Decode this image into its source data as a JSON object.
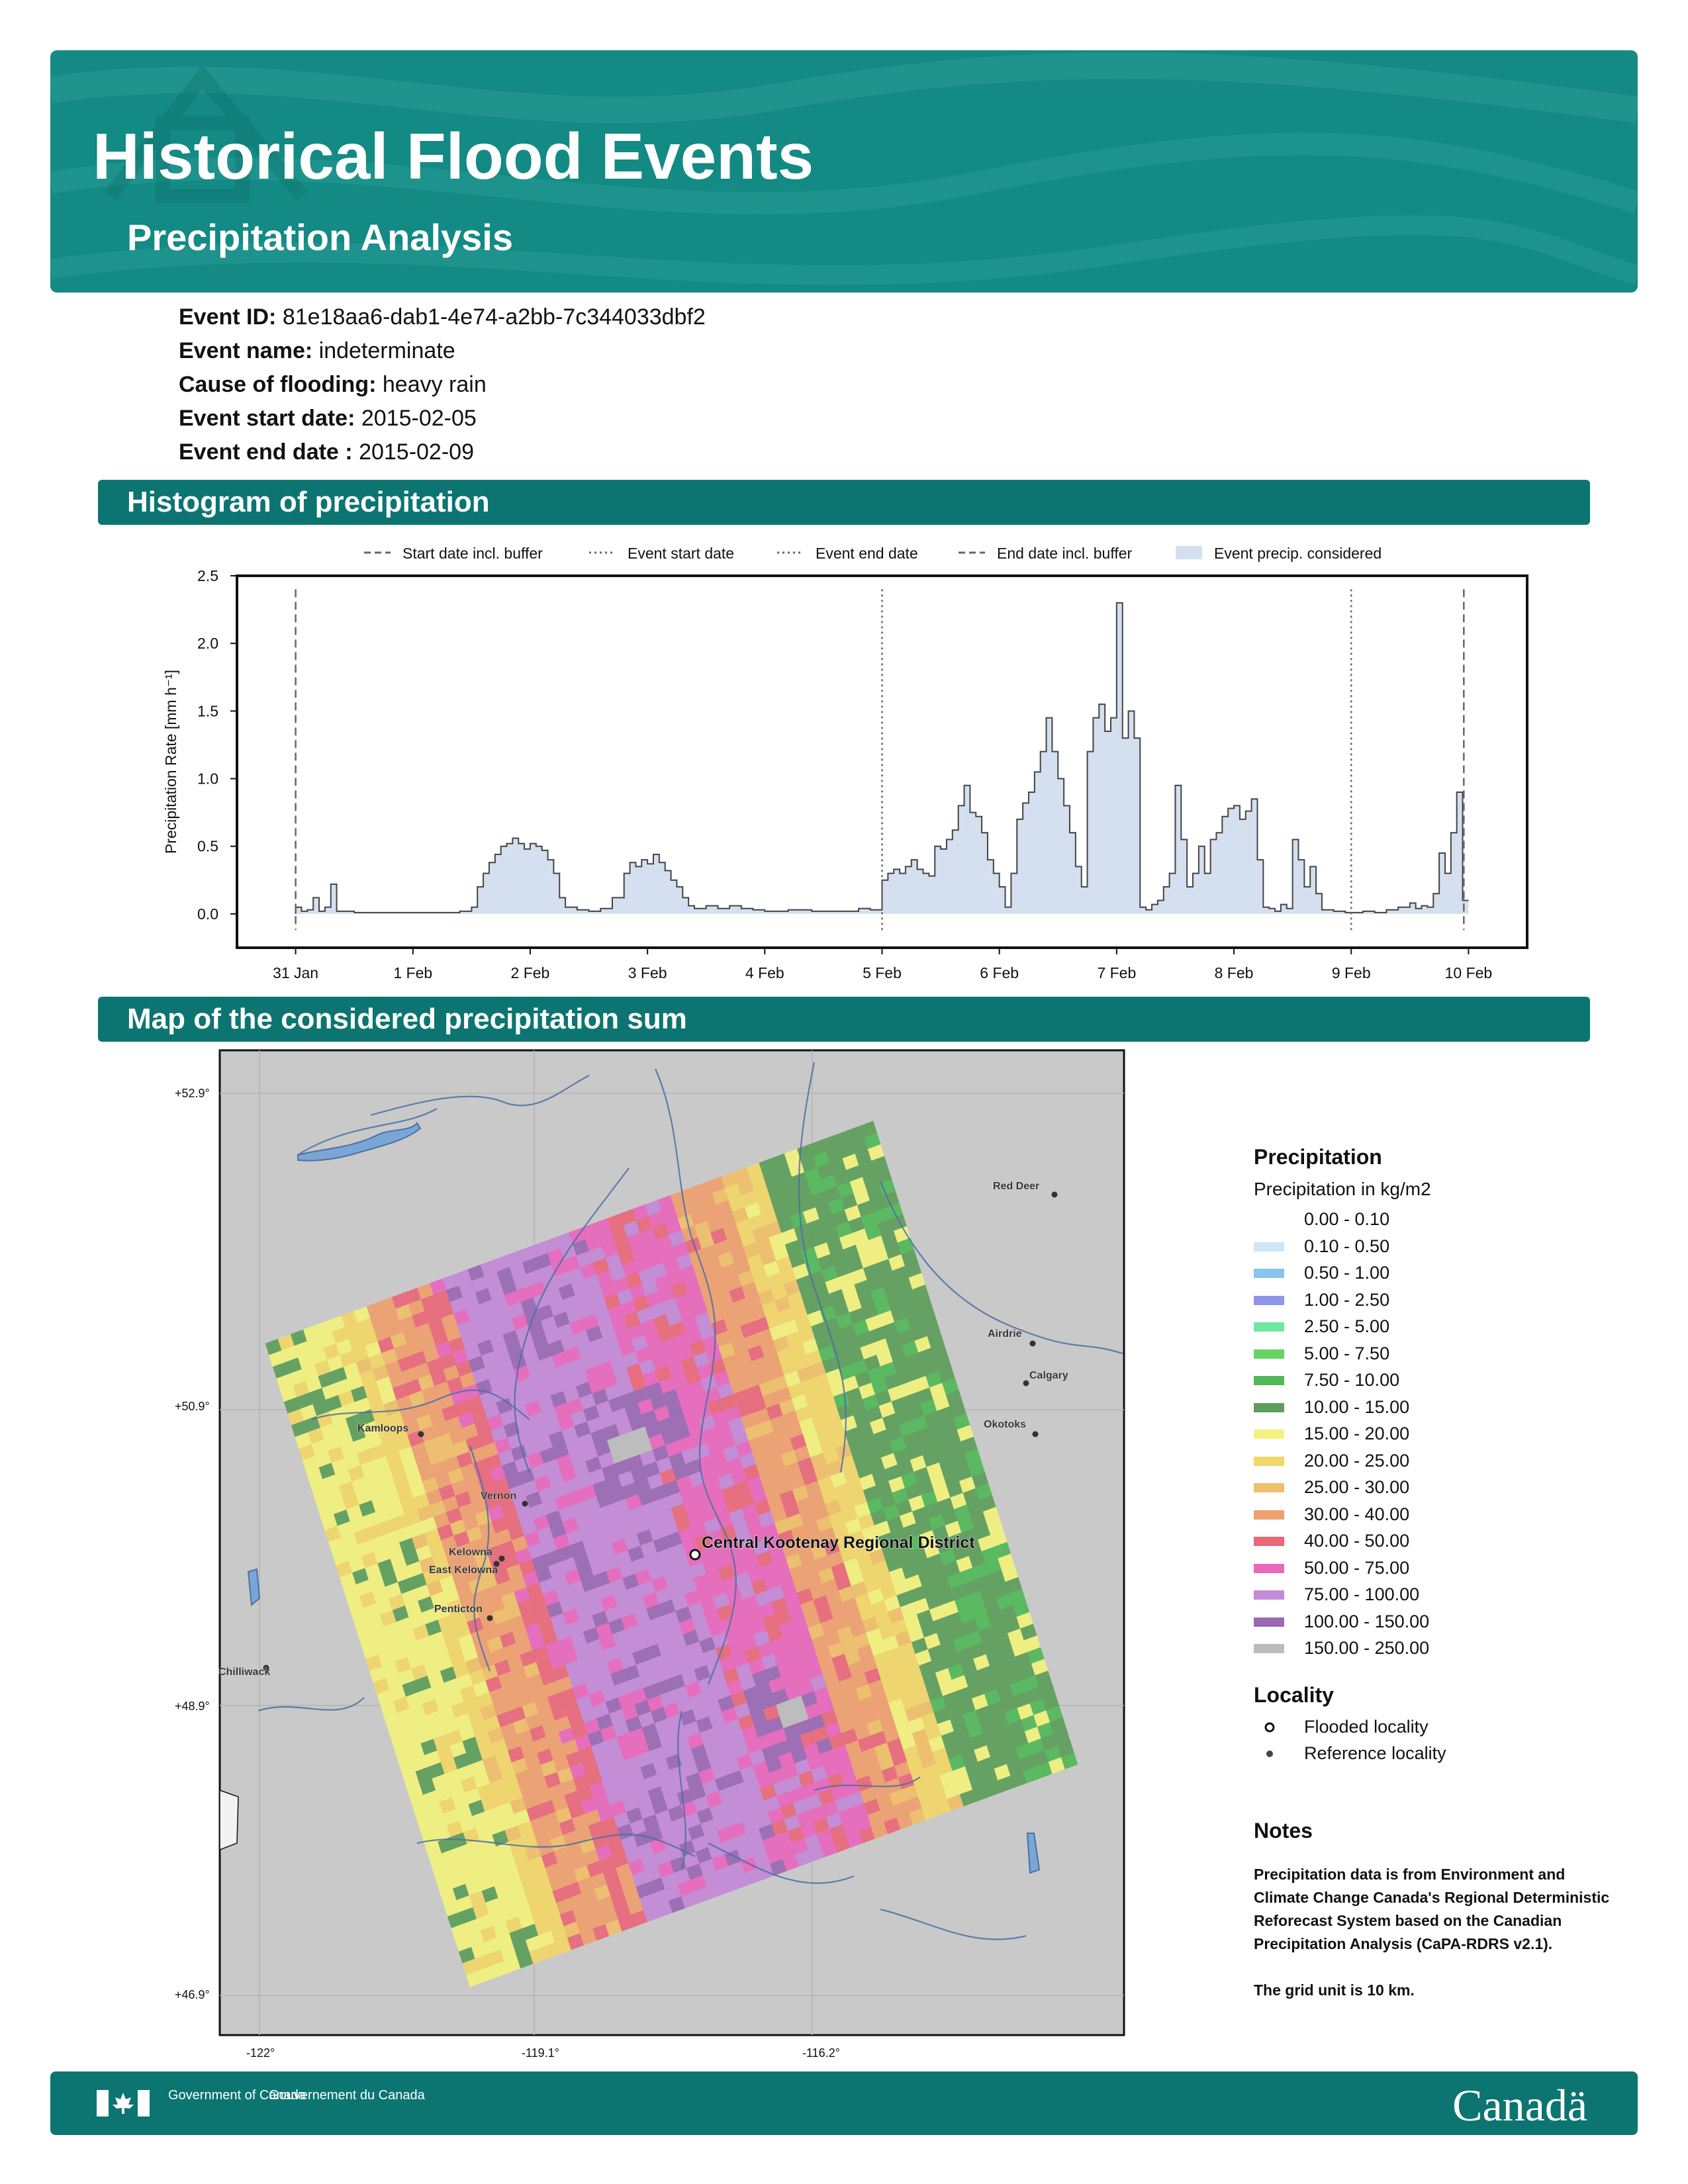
{
  "header": {
    "title": "Historical Flood Events",
    "subtitle": "Precipitation Analysis"
  },
  "event_info": [
    {
      "key": "Event ID:",
      "value": "81e18aa6-dab1-4e74-a2bb-7c344033dbf2"
    },
    {
      "key": "Event name:",
      "value": "indeterminate"
    },
    {
      "key": "Cause of flooding:",
      "value": "heavy rain"
    },
    {
      "key": "Event start date:",
      "value": "2015-02-05"
    },
    {
      "key": "Event end date :",
      "value": "2015-02-09"
    }
  ],
  "sections": {
    "histogram": "Histogram of precipitation",
    "map": "Map of the considered precipitation sum"
  },
  "chart_data": {
    "type": "area",
    "ylabel": "Precipitation Rate [mm h⁻¹]",
    "ylim": [
      -0.25,
      2.5
    ],
    "yticks": [
      "0.0",
      "0.5",
      "1.0",
      "1.5",
      "2.0",
      "2.5"
    ],
    "xticks": [
      "31 Jan",
      "1 Feb",
      "2 Feb",
      "3 Feb",
      "4 Feb",
      "5 Feb",
      "6 Feb",
      "7 Feb",
      "8 Feb",
      "9 Feb",
      "10 Feb"
    ],
    "x_unit": "days since 31 Jan 00:00",
    "legend": [
      {
        "label": "Start date incl. buffer",
        "style": "dashed"
      },
      {
        "label": "Event start date",
        "style": "dotted"
      },
      {
        "label": "Event end date",
        "style": "dotted"
      },
      {
        "label": "End date incl. buffer",
        "style": "dashed"
      },
      {
        "label": "Event precip. considered",
        "style": "fill"
      }
    ],
    "vlines": [
      {
        "label": "Start date incl. buffer",
        "x": 0.0
      },
      {
        "label": "Event start date",
        "x": 5.0
      },
      {
        "label": "Event end date",
        "x": 9.0
      },
      {
        "label": "End date incl. buffer",
        "x": 9.96
      }
    ],
    "series": [
      {
        "x": [
          0.0,
          0.05,
          0.1,
          0.15,
          0.2,
          0.25,
          0.3,
          0.35,
          0.4,
          0.5,
          0.6,
          0.8,
          1.0,
          1.2,
          1.4,
          1.5,
          1.55,
          1.6,
          1.65,
          1.7,
          1.75,
          1.8,
          1.85,
          1.9,
          1.95,
          2.0,
          2.05,
          2.1,
          2.15,
          2.2,
          2.25,
          2.3,
          2.4,
          2.5,
          2.6,
          2.7,
          2.8,
          2.85,
          2.9,
          2.95,
          3.0,
          3.05,
          3.1,
          3.15,
          3.2,
          3.25,
          3.3,
          3.35,
          3.4,
          3.5,
          3.6,
          3.7,
          3.8,
          3.9,
          4.0,
          4.2,
          4.4,
          4.6,
          4.8,
          4.9,
          5.0,
          5.05,
          5.1,
          5.15,
          5.2,
          5.25,
          5.3,
          5.35,
          5.4,
          5.45,
          5.5,
          5.55,
          5.6,
          5.65,
          5.7,
          5.75,
          5.8,
          5.85,
          5.9,
          5.95,
          6.0,
          6.05,
          6.1,
          6.15,
          6.2,
          6.25,
          6.3,
          6.35,
          6.4,
          6.45,
          6.5,
          6.55,
          6.6,
          6.65,
          6.7,
          6.75,
          6.8,
          6.85,
          6.9,
          6.95,
          7.0,
          7.05,
          7.1,
          7.15,
          7.2,
          7.25,
          7.3,
          7.35,
          7.4,
          7.45,
          7.5,
          7.55,
          7.6,
          7.65,
          7.7,
          7.75,
          7.8,
          7.85,
          7.9,
          7.95,
          8.0,
          8.05,
          8.1,
          8.15,
          8.2,
          8.25,
          8.3,
          8.35,
          8.4,
          8.45,
          8.5,
          8.55,
          8.6,
          8.65,
          8.7,
          8.75,
          8.8,
          8.85,
          8.9,
          8.95,
          9.0,
          9.1,
          9.2,
          9.3,
          9.4,
          9.5,
          9.55,
          9.6,
          9.65,
          9.7,
          9.75,
          9.8,
          9.85,
          9.9,
          9.95
        ],
        "values": [
          0.05,
          0.02,
          0.03,
          0.12,
          0.02,
          0.05,
          0.22,
          0.02,
          0.02,
          0.01,
          0.01,
          0.01,
          0.01,
          0.01,
          0.02,
          0.05,
          0.2,
          0.3,
          0.38,
          0.44,
          0.5,
          0.52,
          0.56,
          0.52,
          0.48,
          0.52,
          0.5,
          0.47,
          0.4,
          0.3,
          0.12,
          0.05,
          0.03,
          0.02,
          0.04,
          0.12,
          0.3,
          0.38,
          0.35,
          0.4,
          0.37,
          0.44,
          0.38,
          0.32,
          0.25,
          0.2,
          0.12,
          0.06,
          0.04,
          0.06,
          0.04,
          0.06,
          0.04,
          0.03,
          0.02,
          0.03,
          0.02,
          0.02,
          0.04,
          0.03,
          0.25,
          0.3,
          0.33,
          0.3,
          0.35,
          0.4,
          0.33,
          0.3,
          0.28,
          0.5,
          0.48,
          0.55,
          0.62,
          0.8,
          0.95,
          0.75,
          0.72,
          0.6,
          0.4,
          0.3,
          0.2,
          0.05,
          0.3,
          0.7,
          0.82,
          0.9,
          1.05,
          1.2,
          1.45,
          1.2,
          1.0,
          0.8,
          0.6,
          0.35,
          0.2,
          1.2,
          1.45,
          1.55,
          1.35,
          1.45,
          2.3,
          1.3,
          1.5,
          1.3,
          0.05,
          0.03,
          0.07,
          0.1,
          0.2,
          0.3,
          0.95,
          0.55,
          0.2,
          0.3,
          0.5,
          0.3,
          0.55,
          0.6,
          0.72,
          0.78,
          0.8,
          0.7,
          0.76,
          0.85,
          0.4,
          0.05,
          0.04,
          0.02,
          0.07,
          0.04,
          0.55,
          0.4,
          0.2,
          0.35,
          0.15,
          0.03,
          0.03,
          0.02,
          0.02,
          0.01,
          0.01,
          0.02,
          0.01,
          0.03,
          0.05,
          0.08,
          0.04,
          0.06,
          0.05,
          0.15,
          0.45,
          0.3,
          0.6,
          0.9,
          0.1
        ]
      }
    ]
  },
  "map": {
    "ticks_lat": [
      "+52.9°",
      "+50.9°",
      "+48.9°",
      "+46.9°"
    ],
    "ticks_lon": [
      "-122°",
      "-119.1°",
      "-116.2°"
    ],
    "flooded_locality": "Central Kootenay Regional District",
    "reference_localities": [
      "Red Deer",
      "Airdrie",
      "Calgary",
      "Okotoks",
      "Kamloops",
      "Vernon",
      "Kelowna",
      "East Kelowna",
      "Penticton",
      "Chilliwack"
    ]
  },
  "legend": {
    "title": "Precipitation",
    "subtitle": "Precipitation in kg/m2",
    "bins": [
      {
        "label": "0.00 - 0.10",
        "color": "#ffffff"
      },
      {
        "label": "0.10 - 0.50",
        "color": "#cfe6f7"
      },
      {
        "label": "0.50 - 1.00",
        "color": "#88c4ee"
      },
      {
        "label": "1.00 - 2.50",
        "color": "#8f96e8"
      },
      {
        "label": "2.50 - 5.00",
        "color": "#6ee8a0"
      },
      {
        "label": "5.00 - 7.50",
        "color": "#66d364"
      },
      {
        "label": "7.50 - 10.00",
        "color": "#52b85a"
      },
      {
        "label": "10.00 - 15.00",
        "color": "#5e9e5c"
      },
      {
        "label": "15.00 - 20.00",
        "color": "#f3f27e"
      },
      {
        "label": "20.00 - 25.00",
        "color": "#f2d769"
      },
      {
        "label": "25.00 - 30.00",
        "color": "#efbf6a"
      },
      {
        "label": "30.00 - 40.00",
        "color": "#eea06e"
      },
      {
        "label": "40.00 - 50.00",
        "color": "#e9687a"
      },
      {
        "label": "50.00 - 75.00",
        "color": "#e868bc"
      },
      {
        "label": "75.00 - 100.00",
        "color": "#c38ad8"
      },
      {
        "label": "100.00 - 150.00",
        "color": "#9a68b4"
      },
      {
        "label": "150.00 - 250.00",
        "color": "#bcbcbc"
      }
    ],
    "locality_title": "Locality",
    "flooded_label": "Flooded locality",
    "reference_label": "Reference locality"
  },
  "notes": {
    "title": "Notes",
    "text": "Precipitation data is from Environment and Climate Change Canada's Regional Deterministic Reforecast System based on the Canadian Precipitation Analysis (CaPA-RDRS v2.1).",
    "grid_note": "The grid unit is 10 km."
  },
  "footer": {
    "gov_en": "Government of Canada",
    "gov_fr": "Gouvernement du Canada",
    "wordmark": "Canadä"
  },
  "colors": {
    "banner": "#138a84",
    "section_bar": "#0c7571",
    "hist_fill": "#d4dff0",
    "hist_line": "#444444",
    "map_background": "#c9c9c9",
    "rivers": "#4a6fa5"
  }
}
